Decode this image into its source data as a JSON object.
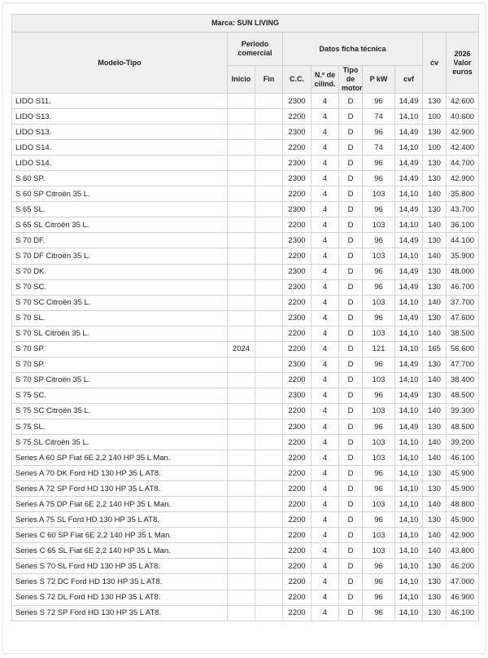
{
  "title": "Marca: SUN LIVING",
  "headers": {
    "modelo": "Modelo-Tipo",
    "periodo": "Periodo comercial",
    "inicio": "Inicio",
    "fin": "Fin",
    "datos": "Datos ficha técnica",
    "cc": "C.C.",
    "cilind": "N.º de cilind.",
    "tipo": "Tipo de motor",
    "kw": "P kW",
    "cvf": "cvf",
    "cv": "cv",
    "valor": "2026 Valor euros"
  },
  "rows": [
    [
      "LIDO S11.",
      "",
      "",
      "2300",
      "4",
      "D",
      "96",
      "14,49",
      "130",
      "42.600"
    ],
    [
      "LIDO S13.",
      "",
      "",
      "2200",
      "4",
      "D",
      "74",
      "14,10",
      "100",
      "40.600"
    ],
    [
      "LIDO S13.",
      "",
      "",
      "2300",
      "4",
      "D",
      "96",
      "14,49",
      "130",
      "42.900"
    ],
    [
      "LIDO S14.",
      "",
      "",
      "2200",
      "4",
      "D",
      "74",
      "14,10",
      "100",
      "42.400"
    ],
    [
      "LIDO S14.",
      "",
      "",
      "2300",
      "4",
      "D",
      "96",
      "14,49",
      "130",
      "44.700"
    ],
    [
      "S 60 SP.",
      "",
      "",
      "2300",
      "4",
      "D",
      "96",
      "14,49",
      "130",
      "42.900"
    ],
    [
      "S 60 SP Citroën 35 L.",
      "",
      "",
      "2200",
      "4",
      "D",
      "103",
      "14,10",
      "140",
      "35.800"
    ],
    [
      "S 65 SL.",
      "",
      "",
      "2300",
      "4",
      "D",
      "96",
      "14,49",
      "130",
      "43.700"
    ],
    [
      "S 65 SL Citroën 35 L.",
      "",
      "",
      "2200",
      "4",
      "D",
      "103",
      "14,10",
      "140",
      "36.100"
    ],
    [
      "S 70 DF.",
      "",
      "",
      "2300",
      "4",
      "D",
      "96",
      "14,49",
      "130",
      "44.100"
    ],
    [
      "S 70 DF Citroën 35 L.",
      "",
      "",
      "2200",
      "4",
      "D",
      "103",
      "14,10",
      "140",
      "35.900"
    ],
    [
      "S 70 DK.",
      "",
      "",
      "2300",
      "4",
      "D",
      "96",
      "14,49",
      "130",
      "48.000"
    ],
    [
      "S 70 SC.",
      "",
      "",
      "2300",
      "4",
      "D",
      "96",
      "14,49",
      "130",
      "46.700"
    ],
    [
      "S 70 SC Citroën 35 L.",
      "",
      "",
      "2200",
      "4",
      "D",
      "103",
      "14,10",
      "140",
      "37.700"
    ],
    [
      "S 70 SL.",
      "",
      "",
      "2300",
      "4",
      "D",
      "96",
      "14,49",
      "130",
      "47.600"
    ],
    [
      "S 70 SL Citroën 35 L.",
      "",
      "",
      "2200",
      "4",
      "D",
      "103",
      "14,10",
      "140",
      "38.500"
    ],
    [
      "S 70 SP.",
      "2024",
      "",
      "2200",
      "4",
      "D",
      "121",
      "14,10",
      "165",
      "56.600"
    ],
    [
      "S 70 SP.",
      "",
      "",
      "2300",
      "4",
      "D",
      "96",
      "14,49",
      "130",
      "47.700"
    ],
    [
      "S 70 SP Citroën 35 L.",
      "",
      "",
      "2200",
      "4",
      "D",
      "103",
      "14,10",
      "140",
      "38.400"
    ],
    [
      "S 75 SC.",
      "",
      "",
      "2300",
      "4",
      "D",
      "96",
      "14,49",
      "130",
      "48.500"
    ],
    [
      "S 75 SC Citroën 35 L.",
      "",
      "",
      "2200",
      "4",
      "D",
      "103",
      "14,10",
      "140",
      "39.300"
    ],
    [
      "S 75 SL.",
      "",
      "",
      "2300",
      "4",
      "D",
      "96",
      "14,49",
      "130",
      "48.500"
    ],
    [
      "S 75 SL Citroën 35 L.",
      "",
      "",
      "2200",
      "4",
      "D",
      "103",
      "14,10",
      "140",
      "39.200"
    ],
    [
      "Series A 60 SP Fiat 6E 2,2 140 HP 35 L Man.",
      "",
      "",
      "2200",
      "4",
      "D",
      "103",
      "14,10",
      "140",
      "46.100"
    ],
    [
      "Series A 70 DK Ford HD 130 HP 35 L AT8.",
      "",
      "",
      "2200",
      "4",
      "D",
      "96",
      "14,10",
      "130",
      "45.900"
    ],
    [
      "Series A 72 SP Ford HD 130 HP 35 L AT8.",
      "",
      "",
      "2200",
      "4",
      "D",
      "96",
      "14,10",
      "130",
      "45.900"
    ],
    [
      "Series A 75 DP Fiat 6E 2,2 140 HP 35 L Man.",
      "",
      "",
      "2200",
      "4",
      "D",
      "103",
      "14,10",
      "140",
      "48.800"
    ],
    [
      "Series A 75 SL Ford HD 130 HP 35 L AT8.",
      "",
      "",
      "2200",
      "4",
      "D",
      "96",
      "14,10",
      "130",
      "45.900"
    ],
    [
      "Series C 60 SP Fiat 6E 2,2 140 HP 35 L Man.",
      "",
      "",
      "2200",
      "4",
      "D",
      "103",
      "14,10",
      "140",
      "42.900"
    ],
    [
      "Series C 65 SL Fiat 6E 2,2 140 HP 35 L Man.",
      "",
      "",
      "2200",
      "4",
      "D",
      "103",
      "14,10",
      "140",
      "43.800"
    ],
    [
      "Series S 70 SL Ford HD 130 HP 35 L AT8.",
      "",
      "",
      "2200",
      "4",
      "D",
      "96",
      "14,10",
      "130",
      "46.200"
    ],
    [
      "Series S 72 DC Ford HD 130 HP 35 L AT8.",
      "",
      "",
      "2200",
      "4",
      "D",
      "96",
      "14,10",
      "130",
      "47.000"
    ],
    [
      "Series S 72 DL Ford HD 130 HP 35 L AT8.",
      "",
      "",
      "2200",
      "4",
      "D",
      "96",
      "14,10",
      "130",
      "46.900"
    ],
    [
      "Series S 72 SP Ford HD 130 HP 35 L AT8.",
      "",
      "",
      "2200",
      "4",
      "D",
      "96",
      "14,10",
      "130",
      "46.100"
    ]
  ]
}
